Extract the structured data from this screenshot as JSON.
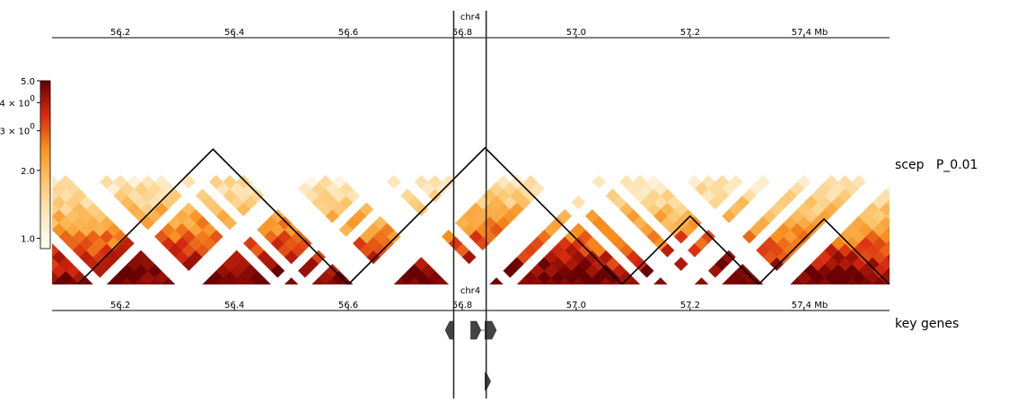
{
  "chart_data": {
    "type": "heatmap",
    "chromosome": "chr4",
    "axis_unit_label": "Mb",
    "xlim": [
      56.08,
      57.55
    ],
    "x_ticks": [
      56.2,
      56.4,
      56.6,
      56.8,
      57.0,
      57.2,
      57.4
    ],
    "x_tick_labels": [
      "56.2",
      "56.4",
      "56.6",
      "56.8",
      "57.0",
      "57.2",
      "57.4 Mb"
    ],
    "tracks": [
      {
        "label": "scep   P_0.01",
        "kind": "hic-triangle-matrix"
      },
      {
        "label": "key genes",
        "kind": "gene-track"
      }
    ],
    "colorbar": {
      "scale": "log",
      "range": [
        0.9,
        5.0
      ],
      "ticks": [
        {
          "value": 5.0,
          "label": "5.0"
        },
        {
          "value": 4.0,
          "label": "4 × 10⁰",
          "base": "4 × 10",
          "exp": "0"
        },
        {
          "value": 3.0,
          "label": "3 × 10⁰",
          "base": "3 × 10",
          "exp": "0"
        },
        {
          "value": 2.0,
          "label": "2.0"
        },
        {
          "value": 1.0,
          "label": "1.0"
        }
      ],
      "colormap": "fall"
    },
    "tads": [
      {
        "start": 56.125,
        "end": 56.6
      },
      {
        "start": 56.6,
        "end": 57.08
      },
      {
        "start": 57.08,
        "end": 57.32
      },
      {
        "start": 57.32,
        "end": 57.55
      }
    ],
    "highlight_lines": [
      56.785,
      56.842
    ],
    "genes": [
      {
        "start": 56.775,
        "end": 56.785,
        "strand": "-",
        "row": 0
      },
      {
        "start": 56.815,
        "end": 56.828,
        "strand": "+",
        "row": 0
      },
      {
        "start": 56.84,
        "end": 56.855,
        "strand": "+",
        "row": 0
      },
      {
        "start": 56.84,
        "end": 56.845,
        "strand": "+",
        "row": 1
      }
    ]
  }
}
